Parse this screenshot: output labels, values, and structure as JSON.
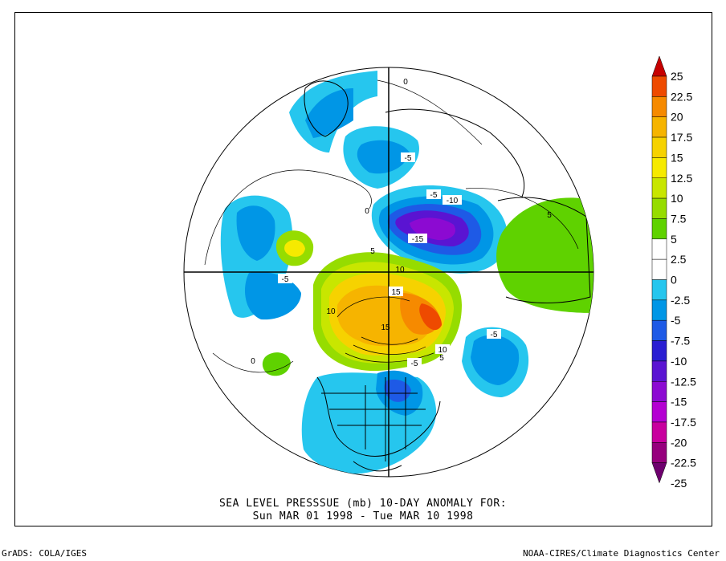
{
  "title": {
    "line1": "SEA LEVEL PRESSSUE (mb)   10-DAY ANOMALY FOR:",
    "line2": "Sun MAR 01 1998 - Tue MAR 10 1998"
  },
  "footer": {
    "left": "GrADS: COLA/IGES",
    "right": "NOAA-CIRES/Climate Diagnostics Center"
  },
  "colorbar": {
    "levels": [
      "25",
      "22.5",
      "20",
      "17.5",
      "15",
      "12.5",
      "10",
      "7.5",
      "5",
      "2.5",
      "0",
      "-2.5",
      "-5",
      "-7.5",
      "-10",
      "-12.5",
      "-15",
      "-17.5",
      "-20",
      "-22.5",
      "-25"
    ],
    "colors": [
      "#c60000",
      "#ee4a00",
      "#f68a00",
      "#f6b400",
      "#f6d200",
      "#f6ea00",
      "#c8e600",
      "#96dc00",
      "#5fd200",
      "#ffffff",
      "#ffffff",
      "#26c6ee",
      "#0096e6",
      "#1e5ae6",
      "#2a1ed2",
      "#5a14d2",
      "#8c0ad2",
      "#b400d2",
      "#c8009e",
      "#96007d",
      "#6e006e"
    ]
  },
  "contour_labels": [
    "-5",
    "0",
    "-5",
    "-10",
    "-15",
    "5",
    "0",
    "5",
    "-5",
    "10",
    "15",
    "15",
    "10",
    "10",
    "-5",
    "-5",
    "0",
    "5"
  ],
  "colors": {
    "land_outline": "#000000",
    "contour": "#000000",
    "background": "#ffffff"
  }
}
